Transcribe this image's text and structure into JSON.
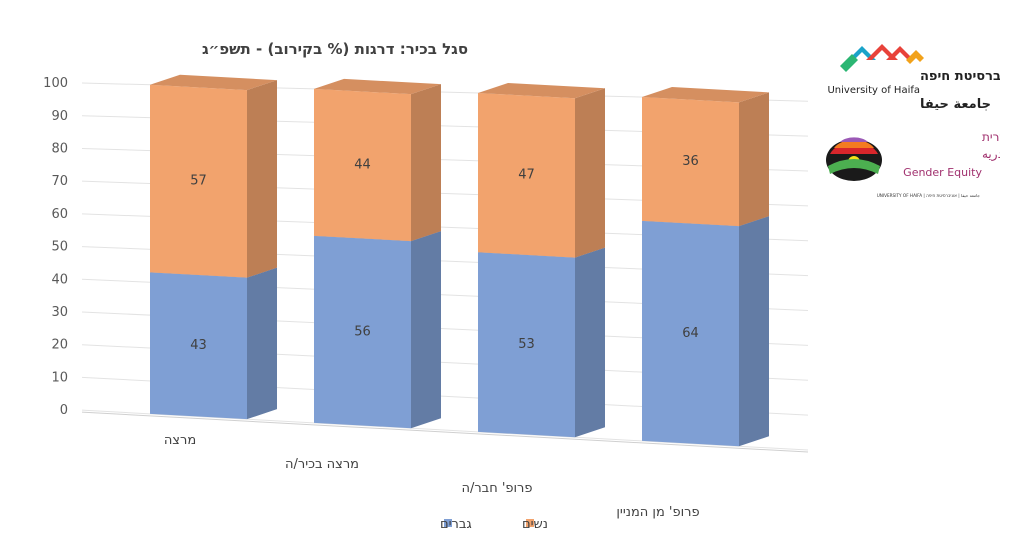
{
  "chart_data": {
    "type": "bar",
    "stacked": true,
    "three_d": true,
    "title": "סגל בכיר: דרגות (% בקירוב) - תשפ״ג",
    "categories": [
      "מרצה",
      "מרצה בכיר/ה",
      "פרופ' חבר/ה",
      "פרופ' מן המניין"
    ],
    "series": [
      {
        "name": "גברים",
        "values": [
          43,
          56,
          53,
          64
        ],
        "color": "#7f9fd4"
      },
      {
        "name": "נשים",
        "values": [
          57,
          44,
          47,
          36
        ],
        "color": "#f2a36d"
      }
    ],
    "yticks": [
      0,
      10,
      20,
      30,
      40,
      50,
      60,
      70,
      80,
      90,
      100
    ],
    "ylim": [
      0,
      100
    ],
    "grid": true,
    "legend_position": "bottom"
  },
  "logos": {
    "haifa_hebrew": "אוניברסיטת חיפה",
    "haifa_english": "University of Haifa",
    "haifa_arabic": "جامعة حيفا",
    "equity_hebrew": "הוגנות מגדרית",
    "equity_arabic": "عداله جندريه",
    "equity_english": "Gender Equity",
    "equity_footer": "UNIVERSITY OF HAIFA | جامعة حيفا | אוניברסיטת חיפה"
  }
}
